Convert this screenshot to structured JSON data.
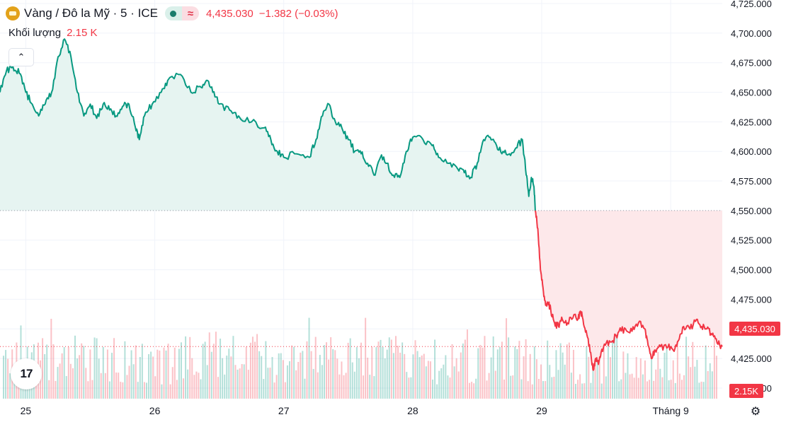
{
  "legend": {
    "symbol": "Vàng / Đô la Mỹ · 5 · ICE",
    "price": "4,435.030",
    "change": "−1.382 (−0.03%)",
    "status_icon": "market-closed-dot-icon",
    "wave_icon": "≈"
  },
  "volume": {
    "label": "Khối lượng",
    "value": "2.15 K"
  },
  "badges": {
    "last_price": "4,435.030",
    "last_volume": "2.15K"
  },
  "logo": {
    "text": "17"
  },
  "collapse_icon": "⌃",
  "settings_icon": "⚙",
  "colors": {
    "up": "#089981",
    "down": "#f23645",
    "up_fill": "#e6f4f1",
    "down_fill": "#fde8ea",
    "grid": "#f0f3fa",
    "axis_text": "#131722"
  },
  "chart_data": {
    "type": "line",
    "y_axis": {
      "min": 4391,
      "max": 4728,
      "ticks": [
        4400,
        4425,
        4450,
        4475,
        4500,
        4525,
        4550,
        4575,
        4600,
        4625,
        4650,
        4675,
        4700,
        4725
      ],
      "tick_labels": [
        "4,400.000",
        "4,425.000",
        "4,450.000",
        "4,475.000",
        "4,500.000",
        "4,525.000",
        "4,550.000",
        "4,575.000",
        "4,600.000",
        "4,625.000",
        "4,650.000",
        "4,675.000",
        "4,700.000",
        "4,725.000"
      ]
    },
    "x_axis": {
      "min": 0,
      "max": 5.6,
      "ticks": [
        0.2,
        1.2,
        2.2,
        3.2,
        4.2,
        5.2
      ],
      "tick_labels": [
        "25",
        "26",
        "27",
        "28",
        "29",
        "Tháng 9"
      ]
    },
    "baseline": 4550,
    "last_price": 4435.03,
    "series": [
      {
        "values": [
          [
            0.0,
            4650
          ],
          [
            0.05,
            4668
          ],
          [
            0.1,
            4672
          ],
          [
            0.15,
            4666
          ],
          [
            0.2,
            4650
          ],
          [
            0.25,
            4640
          ],
          [
            0.3,
            4630
          ],
          [
            0.35,
            4640
          ],
          [
            0.4,
            4650
          ],
          [
            0.45,
            4680
          ],
          [
            0.5,
            4695
          ],
          [
            0.55,
            4680
          ],
          [
            0.6,
            4650
          ],
          [
            0.65,
            4630
          ],
          [
            0.7,
            4640
          ],
          [
            0.75,
            4628
          ],
          [
            0.8,
            4640
          ],
          [
            0.85,
            4635
          ],
          [
            0.9,
            4630
          ],
          [
            0.95,
            4638
          ],
          [
            1.0,
            4640
          ],
          [
            1.05,
            4620
          ],
          [
            1.08,
            4610
          ],
          [
            1.12,
            4630
          ],
          [
            1.18,
            4640
          ],
          [
            1.25,
            4650
          ],
          [
            1.3,
            4660
          ],
          [
            1.4,
            4665
          ],
          [
            1.48,
            4650
          ],
          [
            1.55,
            4655
          ],
          [
            1.6,
            4660
          ],
          [
            1.65,
            4650
          ],
          [
            1.7,
            4640
          ],
          [
            1.78,
            4635
          ],
          [
            1.85,
            4630
          ],
          [
            1.95,
            4625
          ],
          [
            2.05,
            4620
          ],
          [
            2.1,
            4610
          ],
          [
            2.15,
            4600
          ],
          [
            2.2,
            4595
          ],
          [
            2.3,
            4598
          ],
          [
            2.4,
            4595
          ],
          [
            2.45,
            4610
          ],
          [
            2.5,
            4630
          ],
          [
            2.55,
            4640
          ],
          [
            2.6,
            4625
          ],
          [
            2.65,
            4620
          ],
          [
            2.7,
            4610
          ],
          [
            2.75,
            4600
          ],
          [
            2.8,
            4598
          ],
          [
            2.85,
            4590
          ],
          [
            2.9,
            4580
          ],
          [
            2.95,
            4595
          ],
          [
            3.0,
            4590
          ],
          [
            3.05,
            4580
          ],
          [
            3.1,
            4578
          ],
          [
            3.15,
            4600
          ],
          [
            3.2,
            4612
          ],
          [
            3.28,
            4610
          ],
          [
            3.35,
            4605
          ],
          [
            3.4,
            4595
          ],
          [
            3.48,
            4590
          ],
          [
            3.55,
            4585
          ],
          [
            3.6,
            4582
          ],
          [
            3.65,
            4578
          ],
          [
            3.7,
            4590
          ],
          [
            3.75,
            4610
          ],
          [
            3.8,
            4612
          ],
          [
            3.85,
            4605
          ],
          [
            3.9,
            4600
          ],
          [
            3.95,
            4598
          ],
          [
            4.0,
            4603
          ],
          [
            4.05,
            4610
          ],
          [
            4.08,
            4580
          ],
          [
            4.1,
            4562
          ],
          [
            4.12,
            4578
          ],
          [
            4.14,
            4570
          ],
          [
            4.15,
            4550
          ]
        ]
      },
      {
        "values": [
          [
            4.15,
            4550
          ],
          [
            4.17,
            4535
          ],
          [
            4.19,
            4500
          ],
          [
            4.21,
            4485
          ],
          [
            4.23,
            4470
          ],
          [
            4.25,
            4472
          ],
          [
            4.27,
            4466
          ],
          [
            4.3,
            4455
          ],
          [
            4.33,
            4452
          ],
          [
            4.36,
            4458
          ],
          [
            4.4,
            4455
          ],
          [
            4.45,
            4462
          ],
          [
            4.48,
            4458
          ],
          [
            4.5,
            4465
          ],
          [
            4.52,
            4458
          ],
          [
            4.55,
            4445
          ],
          [
            4.58,
            4430
          ],
          [
            4.6,
            4415
          ],
          [
            4.62,
            4425
          ],
          [
            4.64,
            4420
          ],
          [
            4.66,
            4430
          ],
          [
            4.7,
            4438
          ],
          [
            4.75,
            4440
          ],
          [
            4.8,
            4448
          ],
          [
            4.85,
            4450
          ],
          [
            4.9,
            4448
          ],
          [
            4.95,
            4455
          ],
          [
            5.0,
            4450
          ],
          [
            5.02,
            4440
          ],
          [
            5.05,
            4425
          ],
          [
            5.08,
            4432
          ],
          [
            5.12,
            4435
          ],
          [
            5.18,
            4435
          ],
          [
            5.22,
            4432
          ],
          [
            5.26,
            4440
          ],
          [
            5.3,
            4452
          ],
          [
            5.35,
            4450
          ],
          [
            5.4,
            4458
          ],
          [
            5.44,
            4452
          ],
          [
            5.48,
            4450
          ],
          [
            5.52,
            4445
          ],
          [
            5.56,
            4438
          ],
          [
            5.6,
            4435
          ]
        ]
      }
    ],
    "volume": {
      "max": 3.2,
      "last": 2.15
    }
  }
}
